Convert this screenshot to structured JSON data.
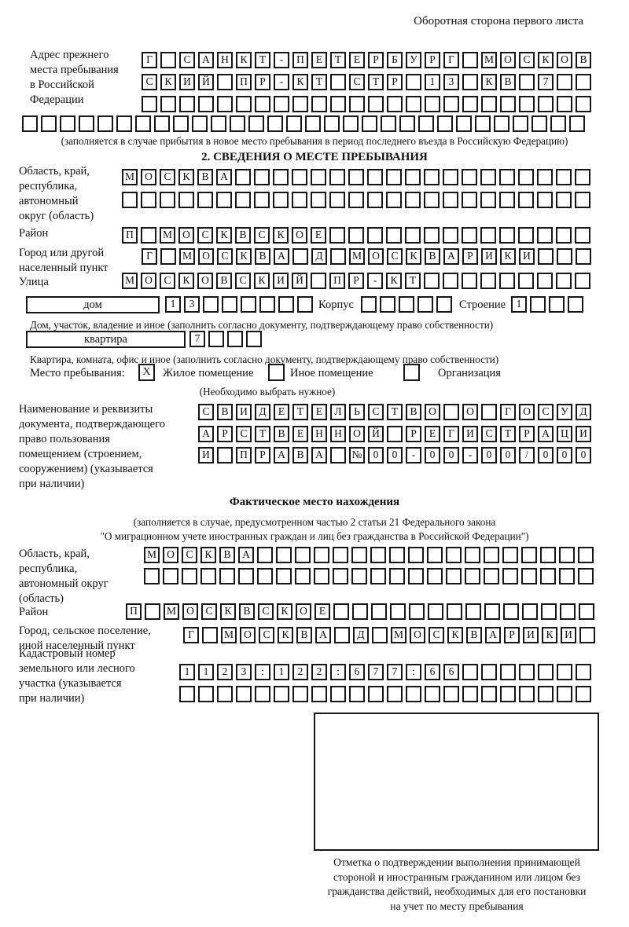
{
  "page": {
    "header_note": "Оборотная сторона первого листа"
  },
  "prev_address": {
    "label_lines": [
      "Адрес прежнего",
      "места пребывания",
      "в Российской",
      "Федерации"
    ],
    "rows": [
      {
        "text": "Г САНКТ-ПЕТЕРБУРГ МОСКОВ",
        "count": 24
      },
      {
        "text": "СКИЙ ПР-КТ СТР 13 КВ 7",
        "count": 24
      },
      {
        "text": "",
        "count": 24
      },
      {
        "text": "",
        "count": 30
      }
    ],
    "caption": "(заполняется в случае прибытия в новое место пребывания в период последнего въезда в Российскую Федерацию)"
  },
  "section2": {
    "title": "2. СВЕДЕНИЯ О МЕСТЕ ПРЕБЫВАНИЯ",
    "oblast": {
      "label_lines": [
        "Область, край,",
        "республика,",
        "автономный",
        "округ (область)"
      ],
      "rows": [
        {
          "text": "МОСКВА",
          "count": 25
        },
        {
          "text": "",
          "count": 25
        }
      ]
    },
    "rayon": {
      "label": "Район",
      "row": {
        "text": "П МОСКВСКОЕ",
        "count": 25
      }
    },
    "gorod": {
      "label_lines": [
        "Город или другой",
        "населенный пункт"
      ],
      "row": {
        "text": "Г МОСКВА Д МОСКВАРИКИ",
        "count": 24
      }
    },
    "ulitsa": {
      "label": "Улица",
      "row": {
        "text": "МОСКОВСКИЙ ПР-КТ",
        "count": 25
      }
    },
    "dom": {
      "box_label": "дом",
      "cells": {
        "text": "13",
        "count": 8
      },
      "korpus_label": "Корпус",
      "korpus_cells": {
        "text": "",
        "count": 5
      },
      "stroenie_label": "Строение",
      "stroenie_cells": {
        "text": "1",
        "count": 4
      },
      "caption": "Дом, участок, владение и иное (заполнить согласно документу, подтверждающему право собственности)"
    },
    "kvartira": {
      "box_label": "квартира",
      "cells": {
        "text": "7",
        "count": 4
      },
      "caption": "Квартира, комната, офис и иное (заполнить согласно документу, подтверждающему право собственности)"
    },
    "mesto": {
      "label": "Место пребывания:",
      "options": [
        {
          "label": "Жилое помещение",
          "checked": "X"
        },
        {
          "label": "Иное помещение",
          "checked": ""
        },
        {
          "label": "Организация",
          "checked": ""
        }
      ],
      "note": "(Необходимо выбрать нужное)"
    },
    "document": {
      "label_lines": [
        "Наименование и реквизиты",
        "документа, подтверждающего",
        "право пользования",
        "помещением (строением,",
        "сооружением) (указывается",
        "при наличии)"
      ],
      "rows": [
        {
          "text": "СВИДЕТЕЛЬСТВО О ГОСУД",
          "count": 21
        },
        {
          "text": "АРСТВЕННОЙ РЕГИСТРАЦИ",
          "count": 21
        },
        {
          "text": "И ПРАВА №00-00-00/000",
          "count": 21
        }
      ]
    }
  },
  "fact_location": {
    "title": "Фактическое место нахождения",
    "caption_lines": [
      "(заполняется в случае, предусмотренном частью 2 статьи 21 Федерального закона",
      "\"О миграционном учете иностранных граждан и лиц без гражданства в Российской Федерации\")"
    ],
    "oblast": {
      "label_lines": [
        "Область, край,",
        "республика,",
        "автономный округ",
        "(область)"
      ],
      "rows": [
        {
          "text": "МОСКВА",
          "count": 24
        },
        {
          "text": "",
          "count": 24
        }
      ]
    },
    "rayon": {
      "label": "Район",
      "row": {
        "text": "П МОСКВСКОЕ",
        "count": 25
      }
    },
    "gorod": {
      "label_lines": [
        "Город, сельское поселение,",
        "иной населенный пункт"
      ],
      "row": {
        "text": "Г МОСКВА Д МОСКВАРИКИ",
        "count": 22
      }
    },
    "kadastr": {
      "label_lines": [
        "Кадастровый номер",
        "земельного или лесного",
        "участка (указывается",
        "при наличии)"
      ],
      "rows": [
        {
          "text": "1123:122:677:66",
          "count": 22
        },
        {
          "text": "",
          "count": 22
        }
      ]
    },
    "stamp_caption_lines": [
      "Отметка о подтверждении выполнения принимающей",
      "стороной и иностранным гражданином или лицом без",
      "гражданства действий, необходимых для его постановки",
      "на учет по месту пребывания"
    ]
  }
}
